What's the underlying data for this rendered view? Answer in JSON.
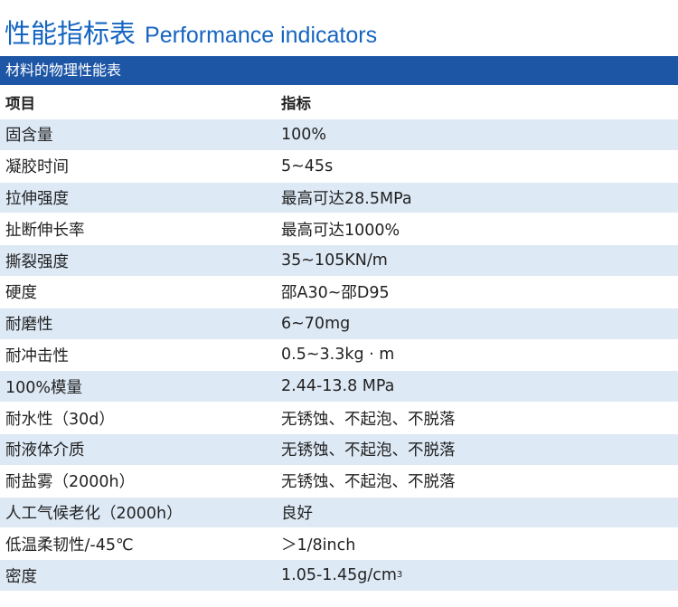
{
  "header": {
    "title_cn": "性能指标表",
    "title_en": "Performance indicators"
  },
  "section": {
    "title": "材料的物理性能表"
  },
  "table": {
    "columns": [
      "项目",
      "指标"
    ],
    "rows": [
      {
        "item": "固含量",
        "value": "100%"
      },
      {
        "item": "凝胶时间",
        "value": "5~45s"
      },
      {
        "item": "拉伸强度",
        "value": "最高可达28.5MPa"
      },
      {
        "item": "扯断伸长率",
        "value": "最高可达1000%"
      },
      {
        "item": "撕裂强度",
        "value": "35~105KN/m"
      },
      {
        "item": "硬度",
        "value": "邵A30~邵D95"
      },
      {
        "item": "耐磨性",
        "value": "6~70mg"
      },
      {
        "item": "耐冲击性",
        "value": "0.5~3.3kg · m"
      },
      {
        "item": "100%模量",
        "value": "2.44-13.8 MPa"
      },
      {
        "item": "耐水性（30d）",
        "value": "无锈蚀、不起泡、不脱落"
      },
      {
        "item": "耐液体介质",
        "value": "无锈蚀、不起泡、不脱落"
      },
      {
        "item": "耐盐雾（2000h）",
        "value": "无锈蚀、不起泡、不脱落"
      },
      {
        "item": "人工气候老化（2000h）",
        "value": "良好"
      },
      {
        "item": "低温柔韧性/-45℃",
        "value": "＞1/8inch"
      },
      {
        "item": "密度",
        "value": "1.05-1.45g/cm",
        "value_sup": "3"
      }
    ]
  },
  "colors": {
    "title": "#1565c0",
    "section_bar": "#1e56a6",
    "row_shade": "#dde9f5",
    "row_plain": "#ffffff"
  }
}
